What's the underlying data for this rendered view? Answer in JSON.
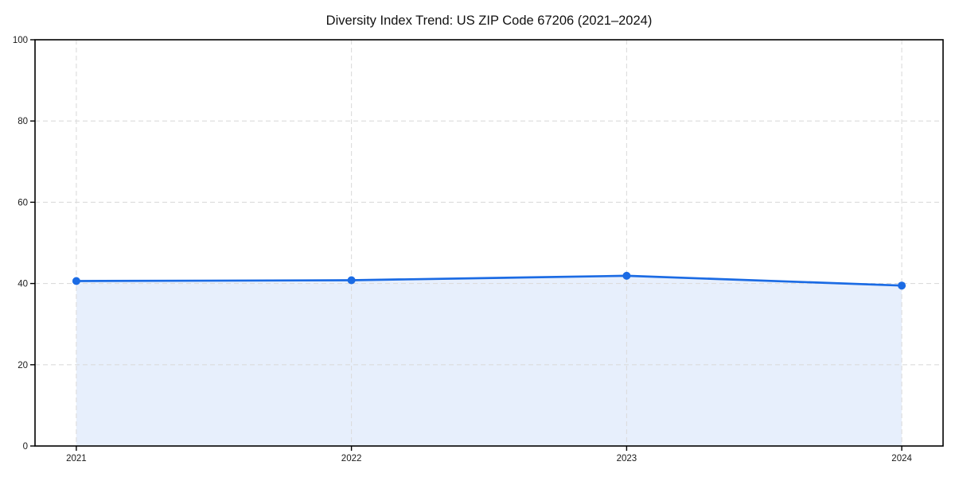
{
  "chart_data": {
    "type": "area",
    "title": "Diversity Index Trend: US ZIP Code 67206 (2021–2024)",
    "series_name": "Diversity Index",
    "x": [
      2021,
      2022,
      2023,
      2024
    ],
    "values": [
      40.6,
      40.8,
      41.9,
      39.5
    ],
    "xlabel": "",
    "ylabel": "",
    "ylim": [
      0,
      100
    ],
    "yticks": [
      0,
      20,
      40,
      60,
      80,
      100
    ],
    "xtick_labels": [
      "2021",
      "2022",
      "2023",
      "2024"
    ],
    "x_margin_fraction": 0.05,
    "grid": true,
    "grid_style": "dashed",
    "legend": "none",
    "marker": "circle",
    "colors": {
      "line": "#1b6be4",
      "marker": "#1b6be4",
      "fill": "#e7effc",
      "grid": "#dcdcdc",
      "axis": "#000000",
      "title_text": "#111111",
      "tick_text": "#1a1a1a",
      "background": "#ffffff"
    }
  }
}
